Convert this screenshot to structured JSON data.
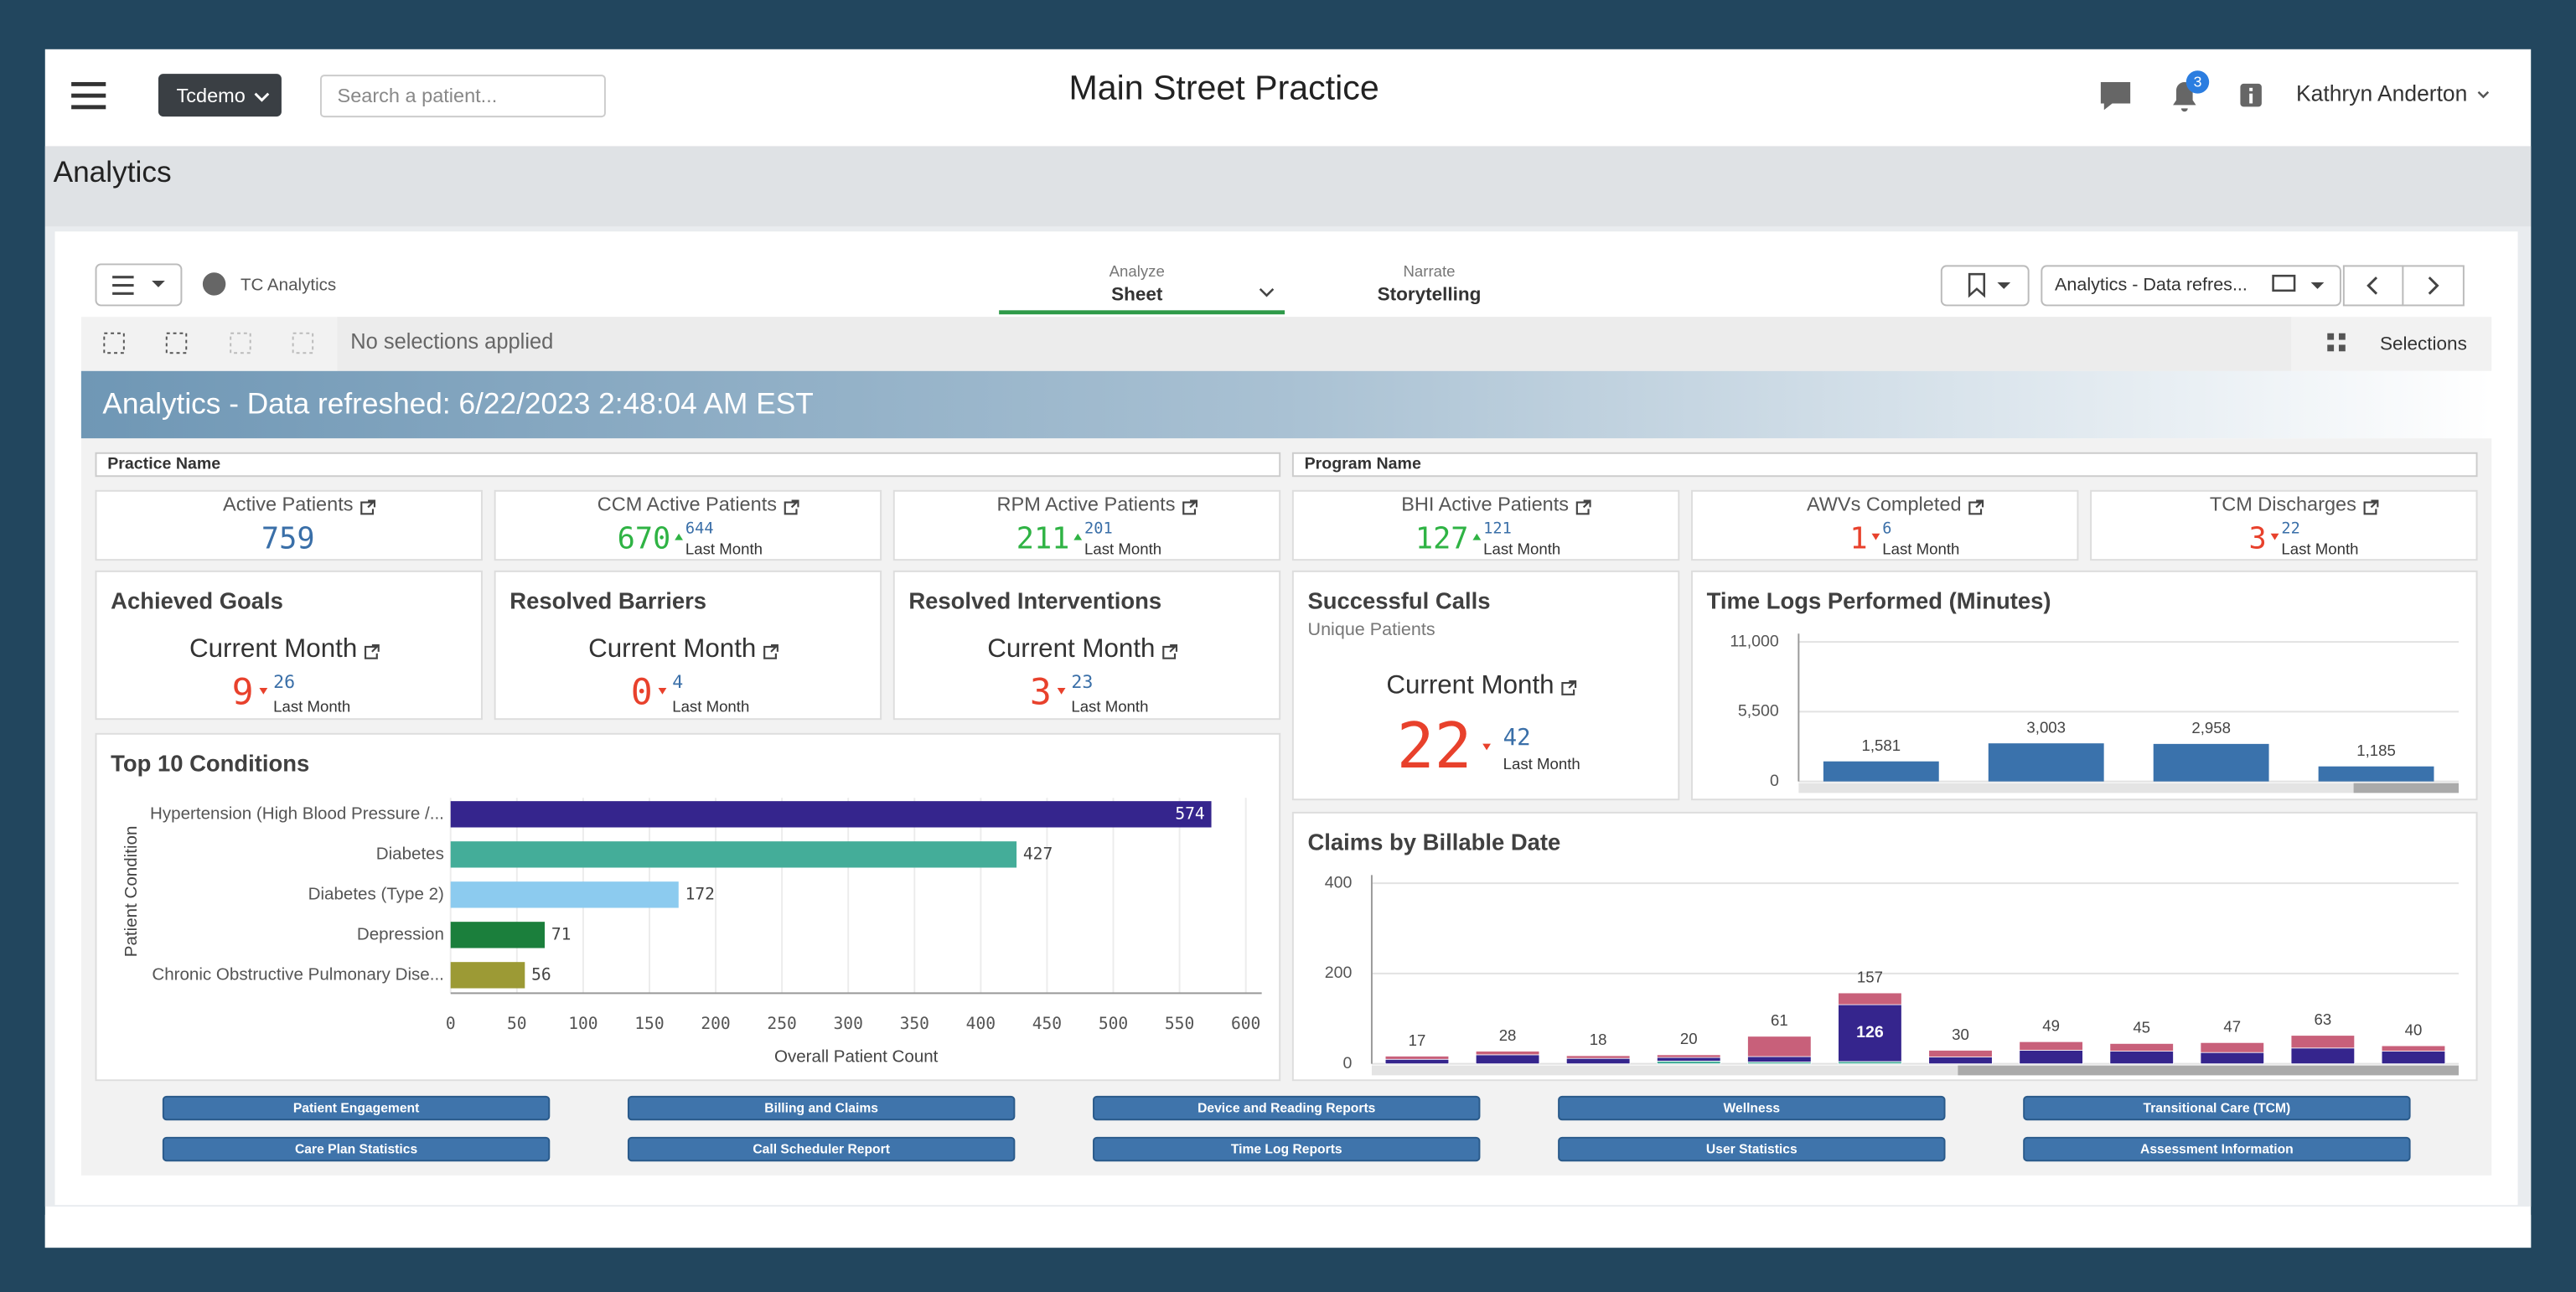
{
  "header": {
    "brand": "Tcdemo",
    "search_placeholder": "Search a patient...",
    "title": "Main Street Practice",
    "notification_count": "3",
    "user": "Kathryn Anderton"
  },
  "page_title": "Analytics",
  "toolbar": {
    "app": "TC Analytics",
    "tabs": [
      {
        "label": "Analyze",
        "value": "Sheet"
      },
      {
        "label": "Narrate",
        "value": "Storytelling"
      }
    ],
    "sheet": "Analytics - Data refres...",
    "selection_status": "No selections applied",
    "selections": "Selections"
  },
  "banner": "Analytics - Data refreshed: 6/22/2023 2:48:04 AM EST",
  "filters": [
    "Practice Name",
    "Program Name"
  ],
  "kpis": [
    {
      "title": "Active Patients",
      "value": 759
    },
    {
      "title": "CCM Active Patients",
      "value": 670,
      "previous": 644,
      "previous_label": "Last Month"
    },
    {
      "title": "RPM Active Patients",
      "value": 211,
      "previous": 201,
      "previous_label": "Last Month"
    },
    {
      "title": "BHI Active Patients",
      "value": 127,
      "previous": 121,
      "previous_label": "Last Month"
    },
    {
      "title": "AWVs Completed",
      "value": 1,
      "previous": 6,
      "previous_label": "Last Month"
    },
    {
      "title": "TCM Discharges",
      "value": 3,
      "previous": 22,
      "previous_label": "Last Month"
    }
  ],
  "goal_cards": [
    {
      "title": "Achieved Goals",
      "period": "Current Month",
      "value": 9,
      "previous": 26,
      "previous_label": "Last Month"
    },
    {
      "title": "Resolved Barriers",
      "period": "Current Month",
      "value": 0,
      "previous": 4,
      "previous_label": "Last Month"
    },
    {
      "title": "Resolved Interventions",
      "period": "Current Month",
      "value": 3,
      "previous": 23,
      "previous_label": "Last Month"
    }
  ],
  "calls_card": {
    "title": "Successful Calls",
    "subtitle": "Unique Patients",
    "period": "Current Month",
    "value": 22,
    "previous": 42,
    "previous_label": "Last Month"
  },
  "chart_data": [
    {
      "type": "bar",
      "title": "Time Logs Performed (Minutes)",
      "categories": [
        null,
        null,
        null,
        null
      ],
      "values": [
        1581,
        3003,
        2958,
        1185
      ],
      "value_labels": [
        "1,581",
        "3,003",
        "2,958",
        "1,185"
      ],
      "color": "#3a72ac",
      "ylim": [
        0,
        11000
      ],
      "yticks": [
        0,
        {
          "value": 5500,
          "label": "5,500"
        },
        {
          "value": 11000,
          "label": "11,000"
        }
      ]
    },
    {
      "type": "hbar",
      "title": "Top 10 Conditions",
      "x_label": "Overall Patient Count",
      "y_label": "Patient Condition",
      "categories": [
        "Hypertension (High Blood Pressure /...",
        "Diabetes",
        "Diabetes (Type 2)",
        "Depression",
        "Chronic Obstructive Pulmonary Dise..."
      ],
      "values": [
        574,
        427,
        172,
        71,
        56
      ],
      "colors": [
        "#35258d",
        "#44ad99",
        "#8ccbef",
        "#1b7f3c",
        "#9c9a35"
      ],
      "xlim": [
        0,
        612
      ],
      "xticks": [
        0,
        50,
        100,
        150,
        200,
        250,
        300,
        350,
        400,
        450,
        500,
        550,
        600
      ],
      "grid": true
    },
    {
      "type": "stacked_bar",
      "title": "Claims by Billable Date",
      "categories": [
        null,
        null,
        null,
        null,
        null,
        null,
        null,
        null,
        null,
        null,
        null,
        null
      ],
      "series": [
        {
          "color": "#44ad99",
          "values": [
            0,
            0,
            0,
            6,
            4,
            5,
            0,
            0,
            0,
            0,
            0,
            0
          ]
        },
        {
          "color": "#35258d",
          "values": [
            10,
            20,
            12,
            8,
            12,
            126,
            15,
            30,
            28,
            25,
            35,
            28
          ]
        },
        {
          "color": "#c8607a",
          "values": [
            7,
            8,
            6,
            6,
            45,
            26,
            15,
            19,
            17,
            22,
            28,
            12
          ]
        }
      ],
      "totals": [
        17,
        28,
        18,
        20,
        61,
        157,
        30,
        49,
        45,
        47,
        63,
        40
      ],
      "ylim": [
        0,
        400
      ],
      "yticks": [
        0,
        200,
        400
      ]
    }
  ],
  "nav_buttons": [
    "Patient Engagement",
    "Billing and Claims",
    "Device and Reading Reports",
    "Wellness",
    "Transitional Care (TCM)",
    "Care Plan Statistics",
    "Call Scheduler Report",
    "Time Log Reports",
    "User Statistics",
    "Assessment Information"
  ]
}
